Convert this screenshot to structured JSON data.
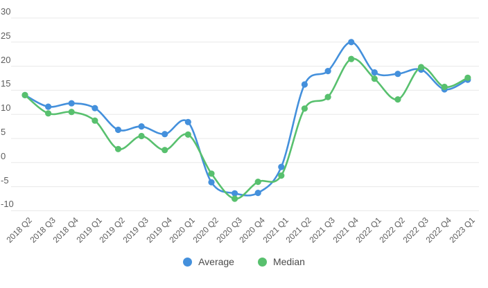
{
  "chart_data": {
    "type": "line",
    "title": "",
    "xlabel": "",
    "ylabel": "",
    "categories": [
      "2018 Q2",
      "2018 Q3",
      "2018 Q4",
      "2019 Q1",
      "2019 Q2",
      "2019 Q3",
      "2019 Q4",
      "2020 Q1",
      "2020 Q2",
      "2020 Q3",
      "2020 Q4",
      "2021 Q1",
      "2021 Q2",
      "2021 Q3",
      "2021 Q4",
      "2022 Q1",
      "2022 Q2",
      "2022 Q3",
      "2022 Q4",
      "2023 Q1"
    ],
    "series": [
      {
        "name": "Average",
        "color": "#4490dc",
        "values": [
          14.0,
          11.6,
          12.3,
          11.3,
          6.8,
          7.5,
          5.9,
          8.4,
          -4.1,
          -6.4,
          -6.3,
          -0.9,
          16.2,
          19.0,
          25.0,
          18.7,
          18.4,
          19.3,
          15.2,
          17.2
        ]
      },
      {
        "name": "Median",
        "color": "#58c06e",
        "values": [
          14.0,
          10.2,
          10.5,
          8.7,
          2.8,
          5.5,
          2.6,
          5.8,
          -2.3,
          -7.5,
          -4.0,
          -2.7,
          11.2,
          13.6,
          21.5,
          17.4,
          13.1,
          19.8,
          15.7,
          17.6
        ]
      }
    ],
    "ylim": [
      -10,
      30
    ],
    "y_ticks": [
      30,
      25,
      20,
      15,
      10,
      5,
      0,
      -5,
      -10
    ],
    "grid": true,
    "gridline_color": "#e8e8e8",
    "axis_text_color": "#5d5d5d",
    "legend_position": "bottom",
    "legend": [
      {
        "label": "Average",
        "color": "#4490dc"
      },
      {
        "label": "Median",
        "color": "#58c06e"
      }
    ]
  }
}
